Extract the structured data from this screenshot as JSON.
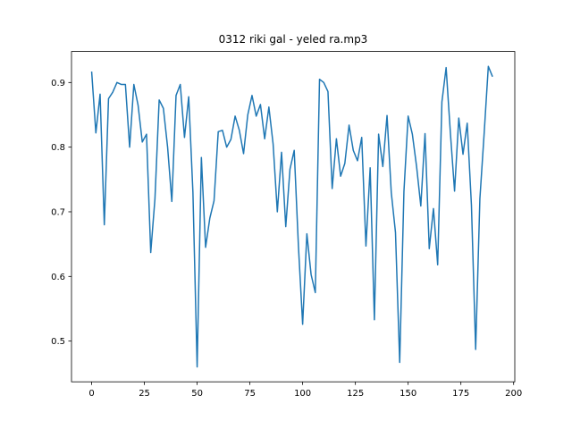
{
  "chart_data": {
    "type": "line",
    "title": "0312 riki gal - yeled ra.mp3",
    "color": "#1f77b4",
    "x": [
      0,
      2,
      4,
      6,
      8,
      10,
      12,
      14,
      16,
      18,
      20,
      22,
      24,
      26,
      28,
      30,
      32,
      34,
      36,
      38,
      40,
      42,
      44,
      46,
      48,
      50,
      52,
      54,
      56,
      58,
      60,
      62,
      64,
      66,
      68,
      70,
      72,
      74,
      76,
      78,
      80,
      82,
      84,
      86,
      88,
      90,
      92,
      94,
      96,
      98,
      100,
      102,
      104,
      106,
      108,
      110,
      112,
      114,
      116,
      118,
      120,
      122,
      124,
      126,
      128,
      130,
      132,
      134,
      136,
      138,
      140,
      142,
      144,
      146,
      148,
      150,
      152,
      154,
      156,
      158,
      160,
      162,
      164,
      166,
      168,
      170,
      172,
      174,
      176,
      178,
      180,
      182,
      184,
      186,
      188,
      190
    ],
    "values": [
      0.917,
      0.822,
      0.882,
      0.68,
      0.875,
      0.885,
      0.9,
      0.897,
      0.897,
      0.8,
      0.897,
      0.865,
      0.808,
      0.82,
      0.637,
      0.72,
      0.873,
      0.86,
      0.8,
      0.716,
      0.88,
      0.897,
      0.815,
      0.878,
      0.73,
      0.46,
      0.784,
      0.645,
      0.69,
      0.717,
      0.824,
      0.826,
      0.8,
      0.812,
      0.848,
      0.826,
      0.79,
      0.85,
      0.88,
      0.848,
      0.866,
      0.813,
      0.862,
      0.805,
      0.7,
      0.792,
      0.677,
      0.766,
      0.795,
      0.647,
      0.526,
      0.666,
      0.603,
      0.575,
      0.905,
      0.9,
      0.886,
      0.736,
      0.813,
      0.755,
      0.775,
      0.834,
      0.795,
      0.779,
      0.815,
      0.647,
      0.768,
      0.533,
      0.82,
      0.77,
      0.849,
      0.73,
      0.668,
      0.467,
      0.731,
      0.848,
      0.82,
      0.77,
      0.709,
      0.821,
      0.643,
      0.705,
      0.618,
      0.87,
      0.923,
      0.823,
      0.732,
      0.845,
      0.789,
      0.837,
      0.71,
      0.487,
      0.72,
      0.82,
      0.925,
      0.909
    ],
    "xlim": [
      -9.55,
      200.55
    ],
    "xticks": [
      0,
      25,
      50,
      75,
      100,
      125,
      150,
      175,
      200
    ],
    "ylim": [
      0.437,
      0.948
    ],
    "yticks": [
      0.5,
      0.6,
      0.7,
      0.8,
      0.9
    ]
  }
}
